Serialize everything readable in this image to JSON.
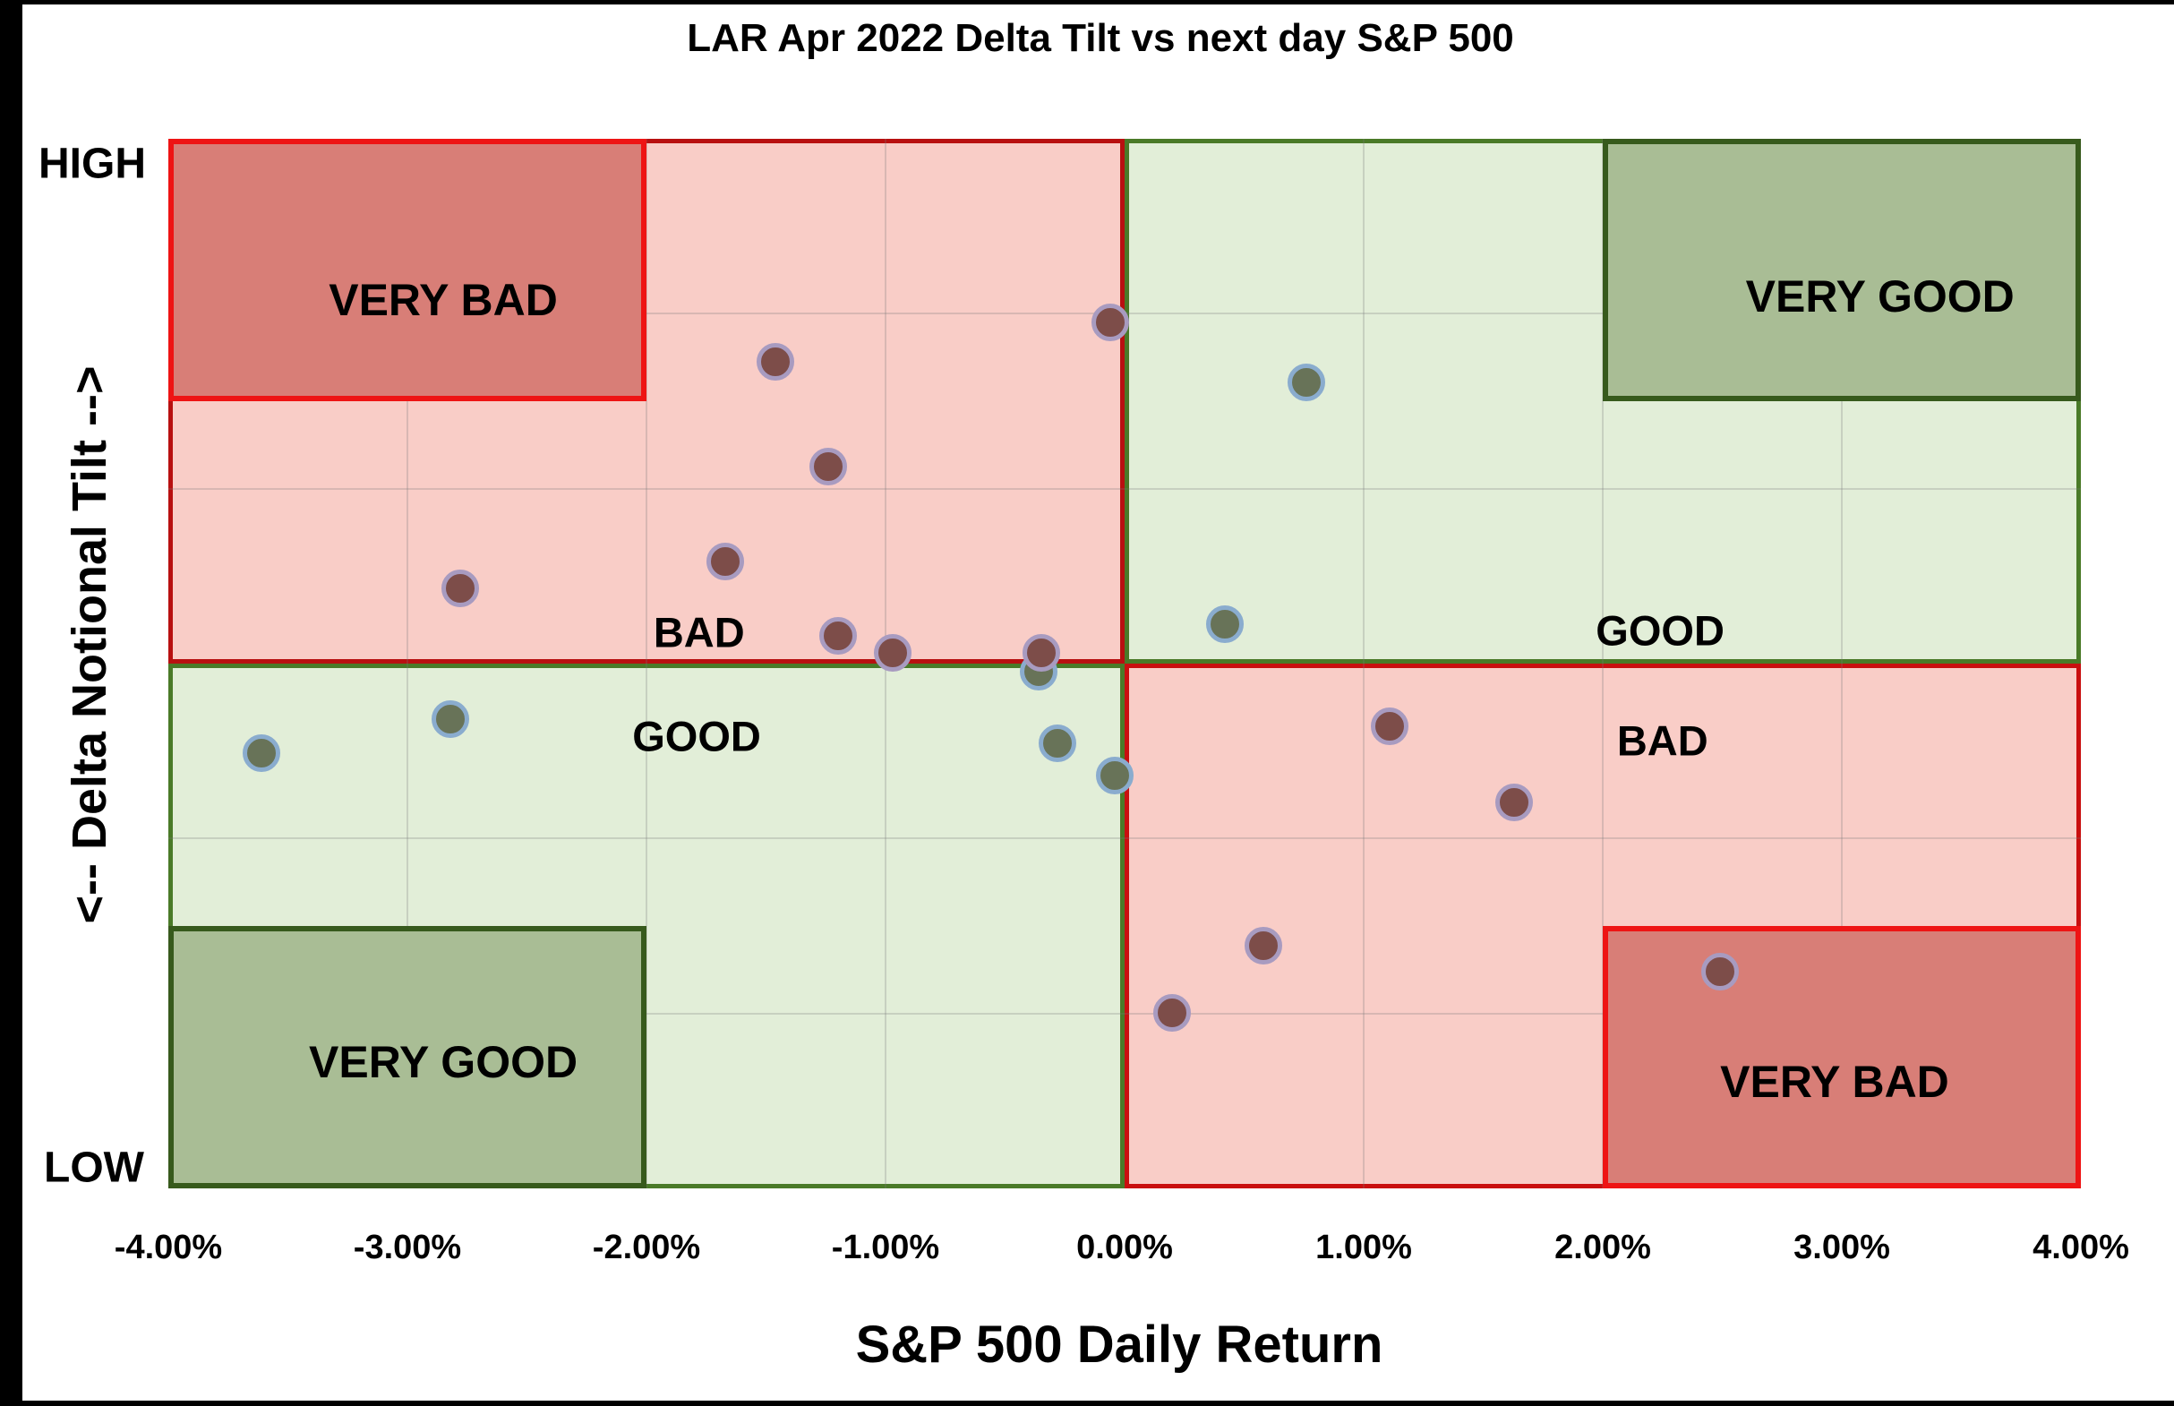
{
  "chart_data": {
    "type": "scatter",
    "title": "LAR Apr 2022 Delta Tilt vs next day S&P 500",
    "xlabel": "S&P 500 Daily Return",
    "ylabel": "<-- Delta Notional Tilt -->",
    "y_end_labels": {
      "top": "HIGH",
      "bottom": "LOW"
    },
    "xlim": [
      -4,
      4
    ],
    "ylim": [
      -4,
      4
    ],
    "x_ticks": [
      {
        "value": -4,
        "label": "-4.00%"
      },
      {
        "value": -3,
        "label": "-3.00%"
      },
      {
        "value": -2,
        "label": "-2.00%"
      },
      {
        "value": -1,
        "label": "-1.00%"
      },
      {
        "value": 0,
        "label": "0.00%"
      },
      {
        "value": 1,
        "label": "1.00%"
      },
      {
        "value": 2,
        "label": "2.00%"
      },
      {
        "value": 3,
        "label": "3.00%"
      },
      {
        "value": 4,
        "label": "4.00%"
      }
    ],
    "grid": {
      "on": true,
      "x_values": [
        -3,
        -2,
        -1,
        1,
        2,
        3
      ],
      "y_values": [
        2.667,
        1.333,
        -1.333,
        -2.667
      ]
    },
    "quadrants": [
      {
        "id": "top-left",
        "x_range": [
          -4,
          0
        ],
        "y_range": [
          0,
          4
        ],
        "fill": "#f9cdc7",
        "border": "#b81010"
      },
      {
        "id": "top-right",
        "x_range": [
          0,
          4
        ],
        "y_range": [
          0,
          4
        ],
        "fill": "#e2eed8",
        "border": "#4a7a28"
      },
      {
        "id": "bottom-left",
        "x_range": [
          -4,
          0
        ],
        "y_range": [
          -4,
          0
        ],
        "fill": "#e2eed8",
        "border": "#4a7a28"
      },
      {
        "id": "bottom-right",
        "x_range": [
          0,
          4
        ],
        "y_range": [
          -4,
          0
        ],
        "fill": "#f9cdc7",
        "border": "#c90f0f"
      }
    ],
    "quadrant_labels": [
      {
        "text": "BAD",
        "x": -1.78,
        "y": 0.24
      },
      {
        "text": "GOOD",
        "x": 2.24,
        "y": 0.25
      },
      {
        "text": "GOOD",
        "x": -1.79,
        "y": -0.55
      },
      {
        "text": "BAD",
        "x": 2.25,
        "y": -0.59
      }
    ],
    "corner_boxes": [
      {
        "text": "VERY BAD",
        "x_range": [
          -4,
          -2
        ],
        "y_range": [
          2,
          4
        ],
        "fill": "#d87e77",
        "border": "#ee1414",
        "label_x": -2.85,
        "label_y": 2.77
      },
      {
        "text": "VERY GOOD",
        "x_range": [
          2,
          4
        ],
        "y_range": [
          2,
          4
        ],
        "fill": "#a9bd95",
        "border": "#375a1c",
        "label_x": 3.16,
        "label_y": 2.8
      },
      {
        "text": "VERY GOOD",
        "x_range": [
          -4,
          -2
        ],
        "y_range": [
          -4,
          -2
        ],
        "fill": "#a9bd95",
        "border": "#375a1c",
        "label_x": -2.85,
        "label_y": -3.04
      },
      {
        "text": "VERY BAD",
        "x_range": [
          2,
          4
        ],
        "y_range": [
          -4,
          -2
        ],
        "fill": "#d87e77",
        "border": "#ee1414",
        "label_x": 2.97,
        "label_y": -3.19
      }
    ],
    "series": [
      {
        "name": "maroon-points",
        "fill": "#7d4d49",
        "ring": "#a89bc0",
        "points": [
          {
            "x": -0.06,
            "tilt": 2.6
          },
          {
            "x": -1.46,
            "tilt": 2.3
          },
          {
            "x": -1.24,
            "tilt": 1.5
          },
          {
            "x": -1.67,
            "tilt": 0.78
          },
          {
            "x": -2.78,
            "tilt": 0.57
          },
          {
            "x": -1.2,
            "tilt": 0.21
          },
          {
            "x": -0.97,
            "tilt": 0.08
          },
          {
            "x": -0.35,
            "tilt": 0.08
          },
          {
            "x": 1.11,
            "tilt": -0.48
          },
          {
            "x": 1.63,
            "tilt": -1.06
          },
          {
            "x": 0.58,
            "tilt": -2.15
          },
          {
            "x": 0.2,
            "tilt": -2.66
          },
          {
            "x": 2.49,
            "tilt": -2.35
          }
        ]
      },
      {
        "name": "green-points",
        "fill": "#687358",
        "ring": "#8aacce",
        "points": [
          {
            "x": -0.36,
            "tilt": -0.06
          },
          {
            "x": 0.76,
            "tilt": 2.14
          },
          {
            "x": 0.42,
            "tilt": 0.3
          },
          {
            "x": -3.61,
            "tilt": -0.68
          },
          {
            "x": -2.82,
            "tilt": -0.42
          },
          {
            "x": -0.28,
            "tilt": -0.61
          },
          {
            "x": -0.04,
            "tilt": -0.85
          }
        ]
      }
    ]
  }
}
